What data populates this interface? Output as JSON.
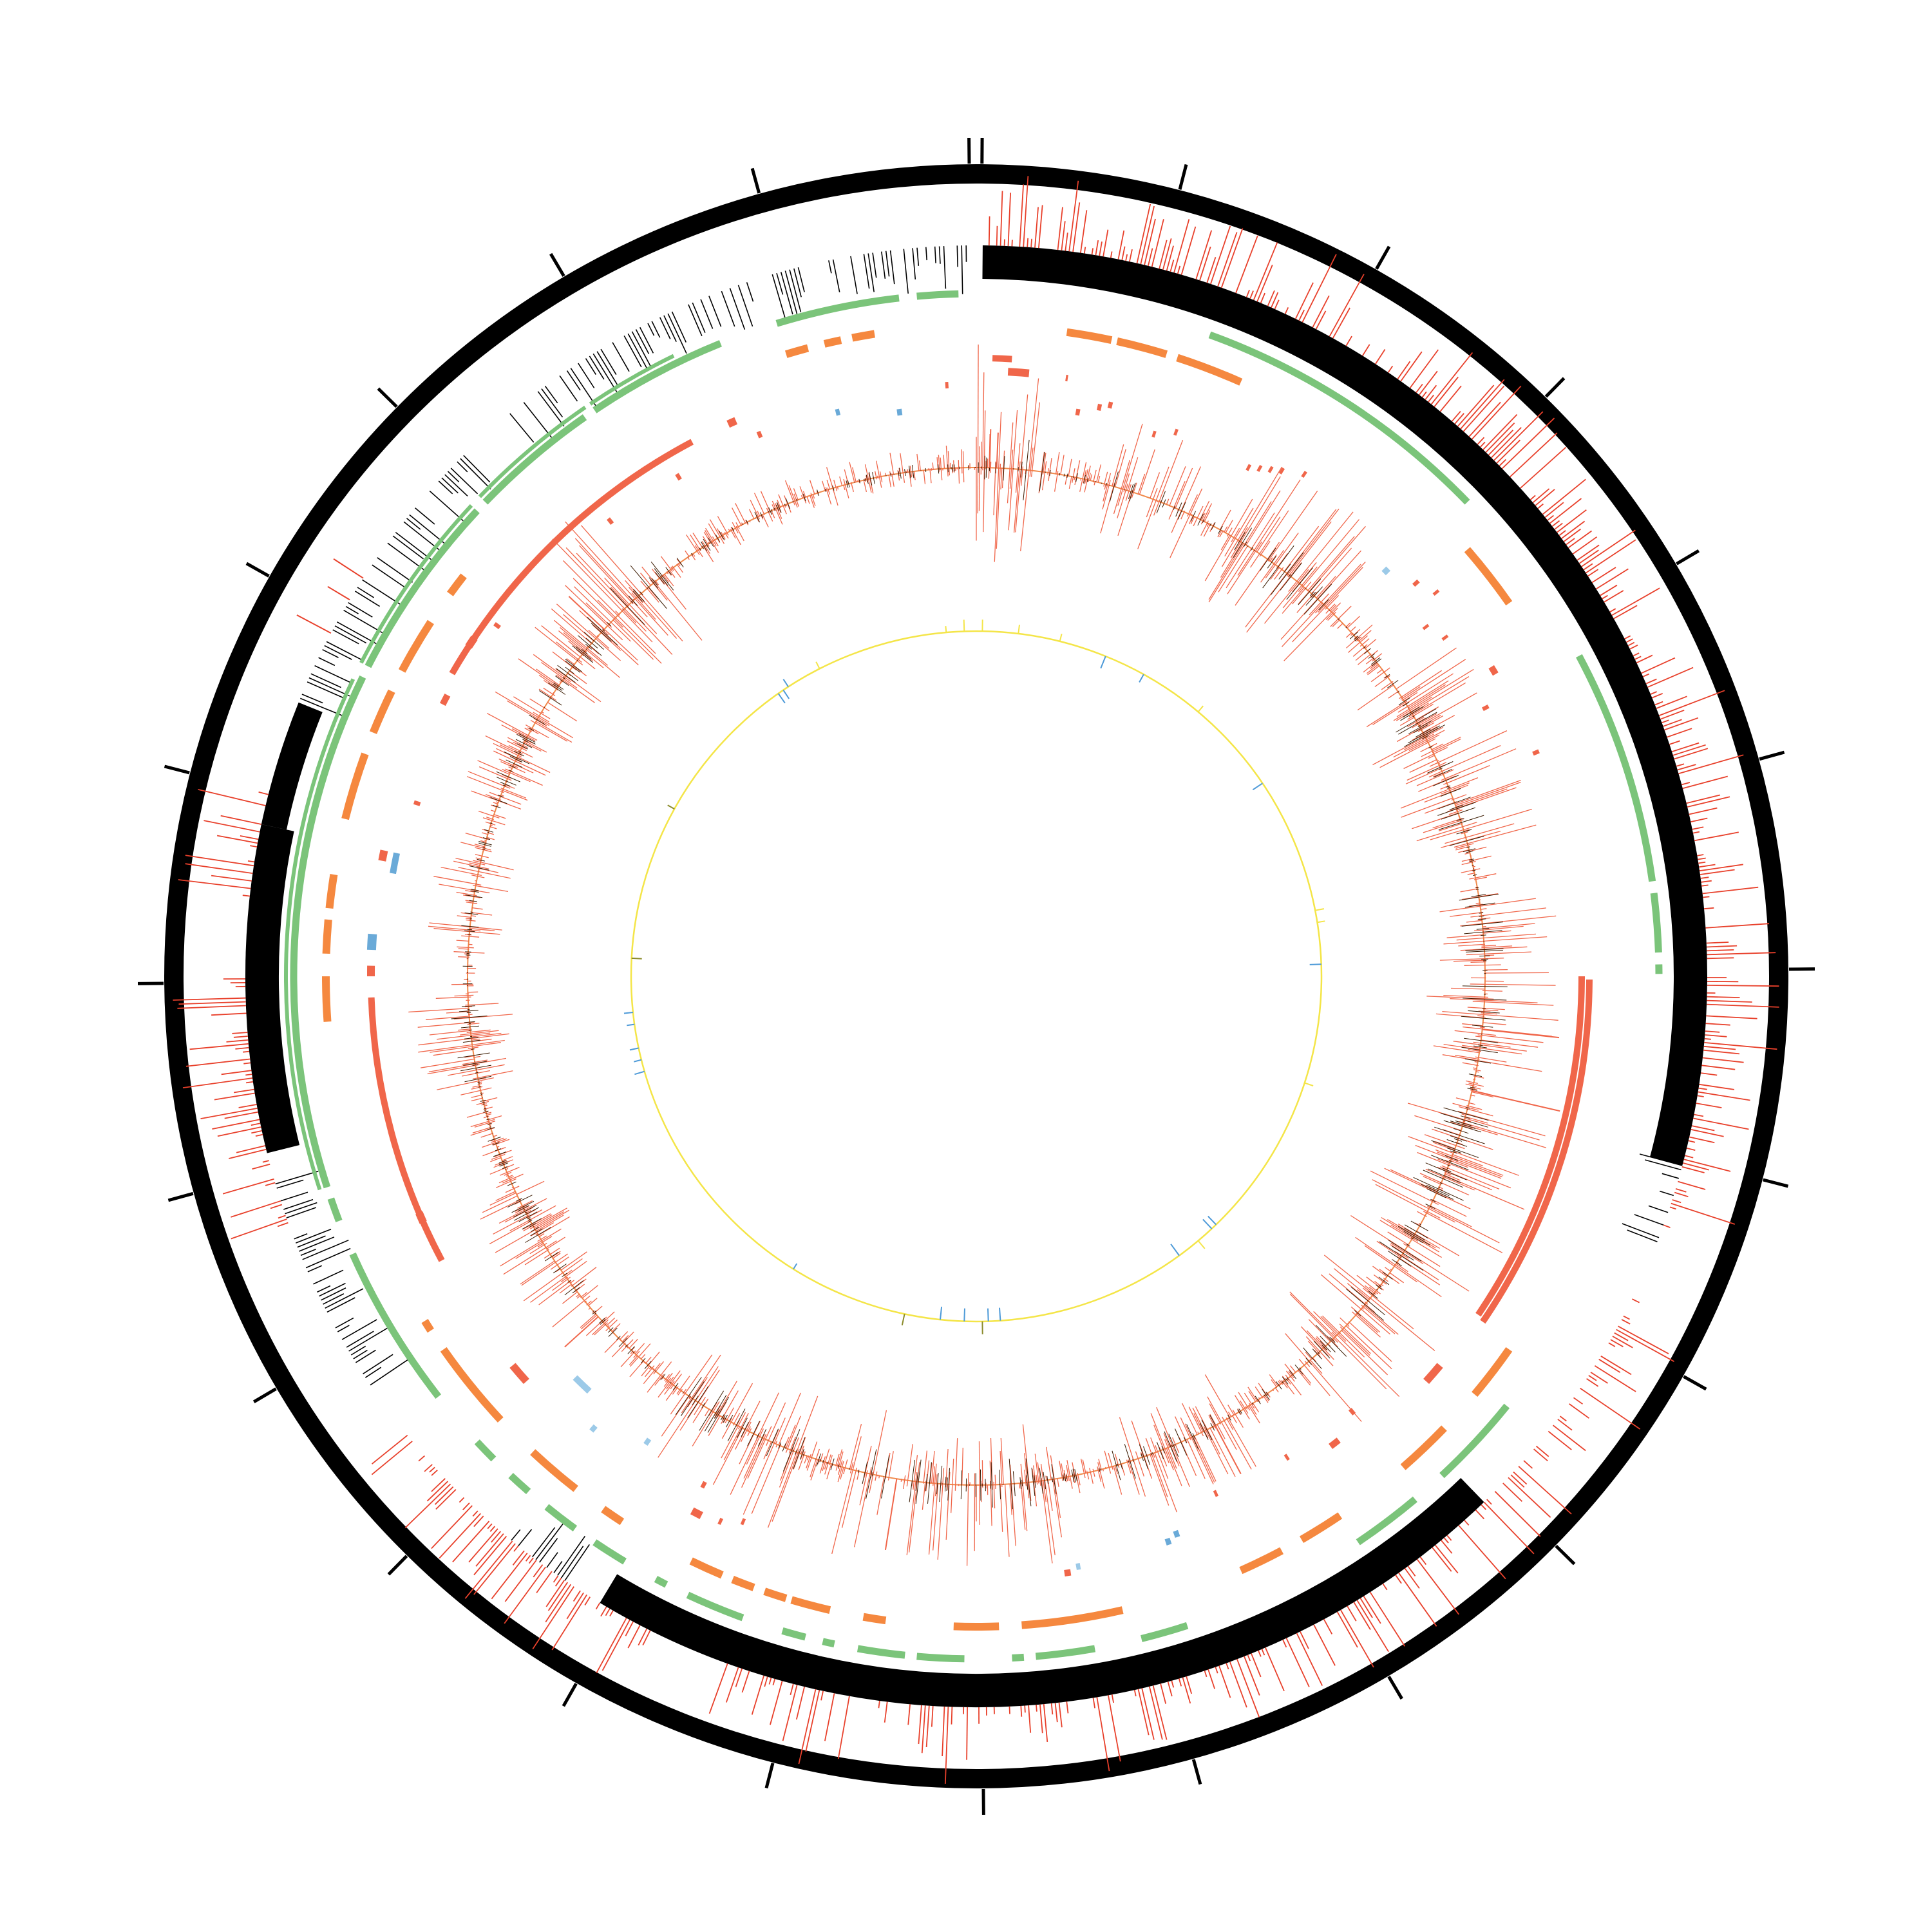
{
  "diagram": {
    "kind": "circular genome map",
    "text_labels": []
  },
  "colors": {
    "background": "#ffffff",
    "ideogram": "#000000",
    "ticks": "#000000",
    "gene_density_red": "#e8402b",
    "gene_density_black": "#000000",
    "segment_green": "#7bc47a",
    "segment_orange": "#f5883f",
    "segment_red": "#f0664a",
    "segment_blue": "#6aaad8",
    "segment_lightblue": "#9ccae8",
    "signal_line": "#f08a4b",
    "signal_spikes_outer": "#f0664a",
    "signal_spikes_inner": "#3a1a00",
    "inner_ring_line": "#f4e548",
    "inner_marks_blue": "#4d9ad8",
    "inner_marks_olive": "#8a8a2a"
  },
  "tracks": [
    {
      "name": "ideogram-ring",
      "style": "solid ring with 24 radial ticks"
    },
    {
      "name": "feature-histogram",
      "style": "radial bars, red outward / black inward"
    },
    {
      "name": "segment-track-green",
      "style": "arc segments"
    },
    {
      "name": "segment-track-orange",
      "style": "arc segments"
    },
    {
      "name": "segment-track-red",
      "style": "arc segments"
    },
    {
      "name": "small-feature-track",
      "style": "scattered short arcs"
    },
    {
      "name": "signal-track",
      "style": "baseline circle with bidirectional spikes"
    },
    {
      "name": "inner-ring",
      "style": "thin yellow circle with sparse marks"
    }
  ]
}
